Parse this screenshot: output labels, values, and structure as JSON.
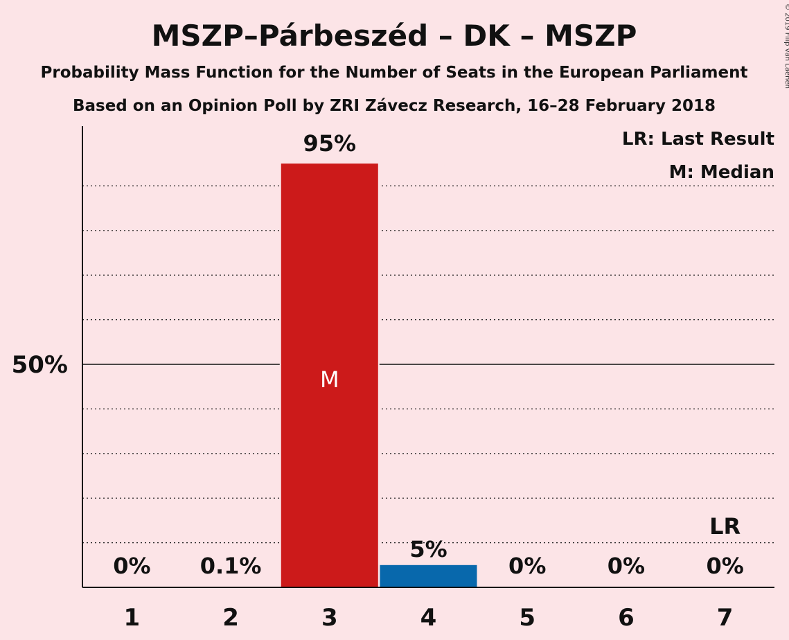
{
  "chart_data": {
    "type": "bar",
    "title": "MSZP–Párbeszéd – DK – MSZP",
    "subtitle1": "Probability Mass Function for the Number of Seats in the European Parliament",
    "subtitle2": "Based on an Opinion Poll by ZRI Závecz Research, 16–28 February 2018",
    "copyright": "© 2019 Filip van Laenen",
    "categories": [
      "1",
      "2",
      "3",
      "4",
      "5",
      "6",
      "7"
    ],
    "values": [
      0,
      0.1,
      95,
      5,
      0,
      0,
      0
    ],
    "value_labels": [
      "0%",
      "0.1%",
      "95%",
      "5%",
      "0%",
      "0%",
      "0%"
    ],
    "bar_colors": [
      "#cc1a1a",
      "#cc1a1a",
      "#cc1a1a",
      "#0868ac",
      "#cc1a1a",
      "#cc1a1a",
      "#cc1a1a"
    ],
    "ylim": [
      0,
      100
    ],
    "y_tick_label": "50%",
    "y_tick_value": 50,
    "grid_step": 10,
    "median_category": "3",
    "median_marker": "M",
    "last_result_category": "7",
    "last_result_marker": "LR",
    "legend": [
      "LR: Last Result",
      "M: Median"
    ],
    "legend_position": "top-right",
    "colors": {
      "background": "#fce4e7",
      "red": "#cc1a1a",
      "blue": "#0868ac"
    }
  }
}
